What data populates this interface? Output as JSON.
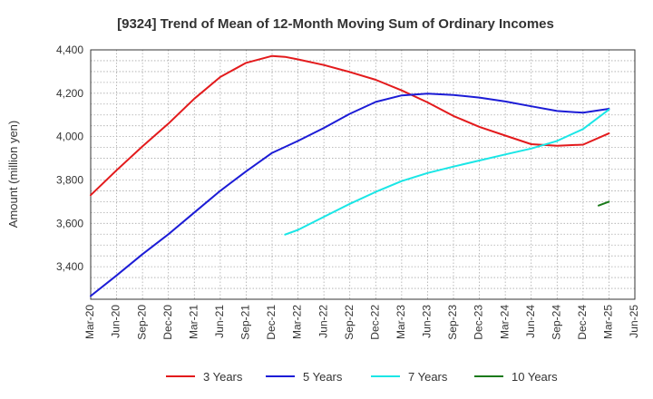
{
  "chart_data": {
    "type": "line",
    "title": "[9324]  Trend of Mean of 12-Month Moving Sum of Ordinary Incomes",
    "xlabel": "",
    "ylabel": "Amount (million yen)",
    "ylim": [
      3250,
      4400
    ],
    "yticks": [
      3400,
      3600,
      3800,
      4000,
      4200,
      4400
    ],
    "ytick_labels": [
      "3,400",
      "3,600",
      "3,800",
      "4,000",
      "4,200",
      "4,400"
    ],
    "x_range": [
      0,
      21
    ],
    "xtick_labels": [
      "Mar-20",
      "Jun-20",
      "Sep-20",
      "Dec-20",
      "Mar-21",
      "Jun-21",
      "Sep-21",
      "Dec-21",
      "Mar-22",
      "Jun-22",
      "Sep-22",
      "Dec-22",
      "Mar-23",
      "Jun-23",
      "Sep-23",
      "Dec-23",
      "Mar-24",
      "Jun-24",
      "Sep-24",
      "Dec-24",
      "Mar-25",
      "Jun-25"
    ],
    "grid": true,
    "legend_position": "bottom",
    "series": [
      {
        "name": "3 Years",
        "color": "#e31a1c",
        "x": [
          0,
          1,
          2,
          3,
          4,
          5,
          6,
          7,
          7.5,
          8,
          9,
          10,
          11,
          12,
          13,
          14,
          15,
          16,
          17,
          18,
          19,
          20
        ],
        "values": [
          3730,
          3845,
          3955,
          4060,
          4175,
          4275,
          4340,
          4372,
          4368,
          4356,
          4330,
          4298,
          4262,
          4213,
          4158,
          4095,
          4045,
          4005,
          3965,
          3958,
          3963,
          4015
        ]
      },
      {
        "name": "5 Years",
        "color": "#1c1cd6",
        "x": [
          0,
          1,
          2,
          3,
          4,
          5,
          6,
          7,
          8,
          9,
          10,
          11,
          12,
          13,
          14,
          15,
          16,
          17,
          18,
          19,
          20
        ],
        "values": [
          3265,
          3360,
          3458,
          3550,
          3650,
          3750,
          3840,
          3925,
          3980,
          4040,
          4105,
          4160,
          4190,
          4198,
          4192,
          4180,
          4162,
          4140,
          4118,
          4110,
          4128
        ]
      },
      {
        "name": "7 Years",
        "color": "#1ae6e6",
        "x": [
          7.5,
          8,
          9,
          10,
          11,
          12,
          13,
          14,
          15,
          16,
          17,
          18,
          19,
          20
        ],
        "values": [
          3548,
          3570,
          3630,
          3690,
          3745,
          3795,
          3832,
          3862,
          3890,
          3918,
          3945,
          3980,
          4035,
          4125
        ]
      },
      {
        "name": "10 Years",
        "color": "#1a7a1a",
        "x": [
          19.6,
          20
        ],
        "values": [
          3682,
          3700
        ]
      }
    ]
  }
}
